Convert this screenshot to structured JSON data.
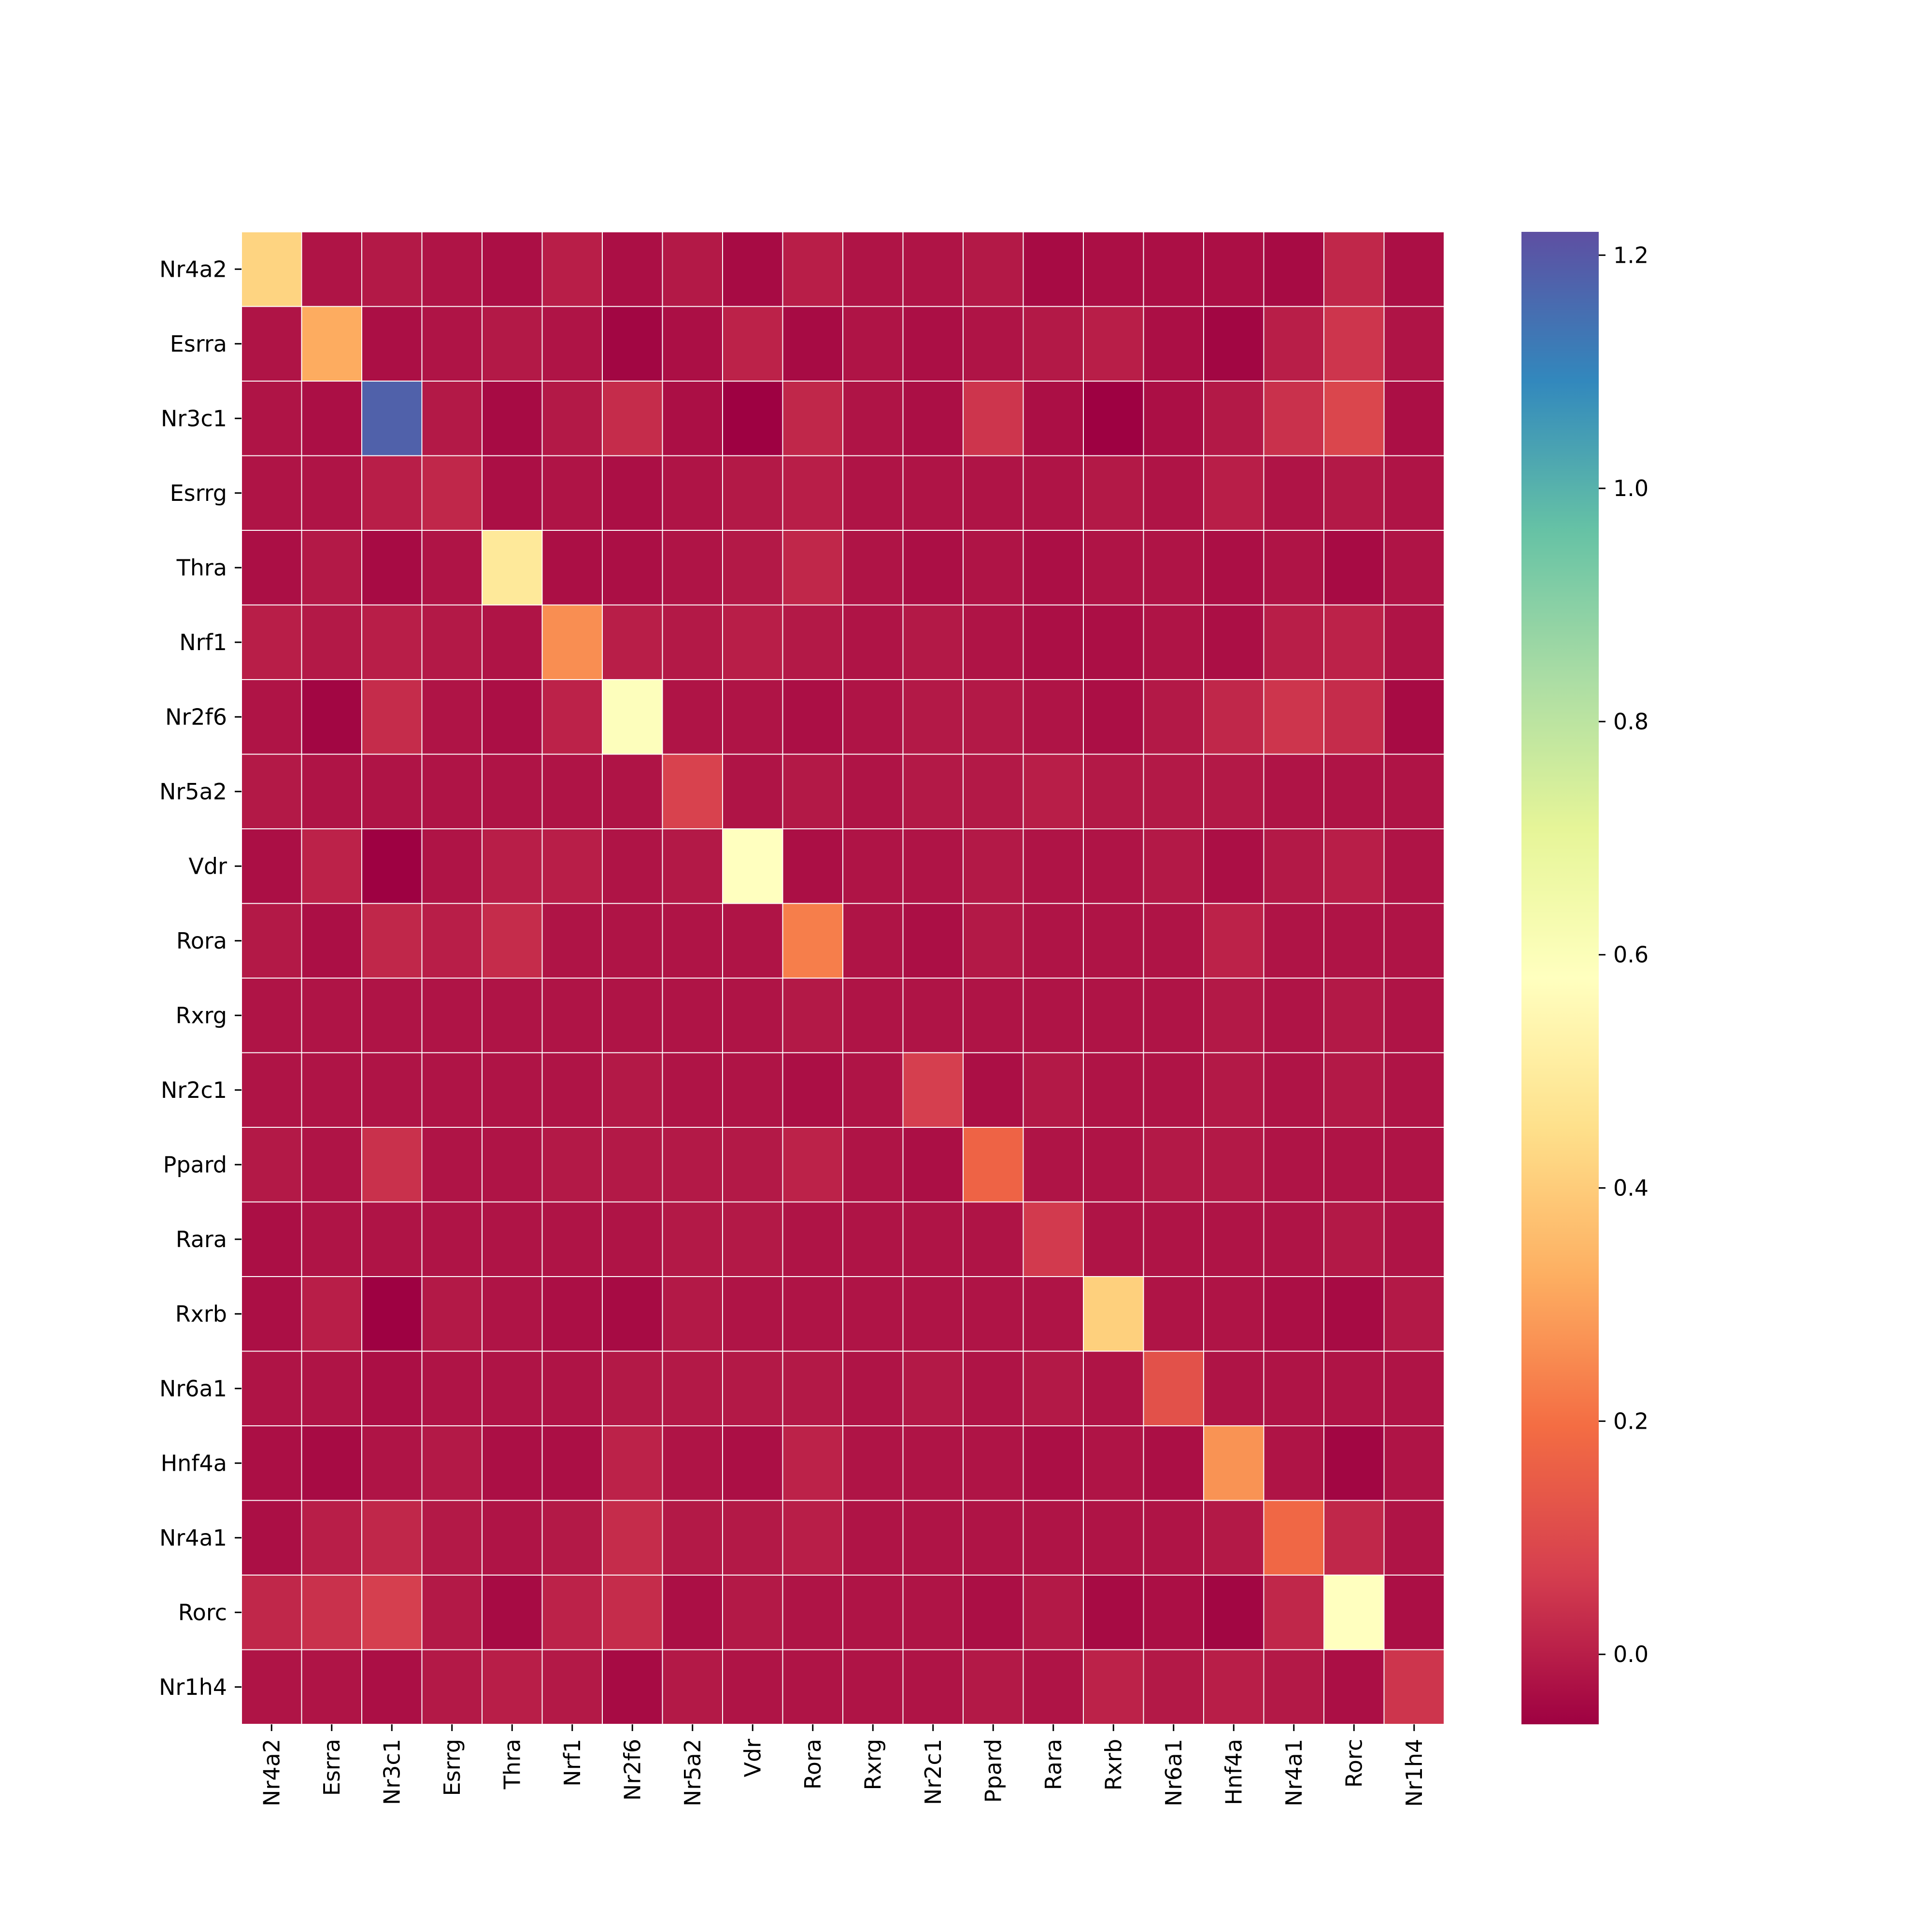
{
  "chart_data": {
    "type": "heatmap",
    "title": "",
    "xlabel": "",
    "ylabel": "",
    "rows": [
      "Nr4a2",
      "Esrra",
      "Nr3c1",
      "Esrrg",
      "Thra",
      "Nrf1",
      "Nr2f6",
      "Nr5a2",
      "Vdr",
      "Rora",
      "Rxrg",
      "Nr2c1",
      "Ppard",
      "Rara",
      "Rxrb",
      "Nr6a1",
      "Hnf4a",
      "Nr4a1",
      "Rorc",
      "Nr1h4"
    ],
    "columns": [
      "Nr4a2",
      "Esrra",
      "Nr3c1",
      "Esrrg",
      "Thra",
      "Nrf1",
      "Nr2f6",
      "Nr5a2",
      "Vdr",
      "Rora",
      "Rxrg",
      "Nr2c1",
      "Ppard",
      "Rara",
      "Rxrb",
      "Nr6a1",
      "Hnf4a",
      "Nr4a1",
      "Rorc",
      "Nr1h4"
    ],
    "values": [
      [
        0.42,
        -0.02,
        -0.01,
        -0.02,
        -0.03,
        0.0,
        -0.03,
        -0.01,
        -0.04,
        0.0,
        -0.02,
        -0.02,
        -0.01,
        -0.04,
        -0.03,
        -0.03,
        -0.03,
        -0.04,
        0.02,
        -0.03
      ],
      [
        -0.02,
        0.32,
        -0.03,
        -0.02,
        -0.01,
        -0.02,
        -0.05,
        -0.03,
        0.01,
        -0.04,
        -0.02,
        -0.03,
        -0.02,
        -0.01,
        0.0,
        -0.03,
        -0.05,
        0.0,
        0.05,
        -0.02
      ],
      [
        -0.02,
        -0.03,
        1.18,
        -0.01,
        -0.04,
        -0.01,
        0.03,
        -0.03,
        -0.06,
        0.02,
        -0.02,
        -0.03,
        0.05,
        -0.03,
        -0.06,
        -0.03,
        -0.01,
        0.04,
        0.09,
        -0.03
      ],
      [
        -0.02,
        -0.02,
        0.0,
        0.02,
        -0.03,
        -0.02,
        -0.03,
        -0.02,
        -0.01,
        0.0,
        -0.02,
        -0.02,
        -0.02,
        -0.02,
        -0.01,
        -0.02,
        0.0,
        -0.02,
        -0.01,
        -0.02
      ],
      [
        -0.03,
        -0.01,
        -0.04,
        -0.02,
        0.49,
        -0.03,
        -0.03,
        -0.02,
        -0.01,
        0.02,
        -0.02,
        -0.03,
        -0.02,
        -0.03,
        -0.02,
        -0.02,
        -0.03,
        -0.02,
        -0.04,
        -0.02
      ],
      [
        0.0,
        -0.01,
        0.0,
        -0.01,
        -0.02,
        0.26,
        0.0,
        -0.01,
        0.0,
        -0.01,
        -0.02,
        -0.01,
        -0.02,
        -0.03,
        -0.03,
        -0.02,
        -0.03,
        0.0,
        0.01,
        -0.02
      ],
      [
        -0.02,
        -0.05,
        0.03,
        -0.02,
        -0.03,
        0.01,
        0.59,
        -0.02,
        -0.02,
        -0.03,
        -0.02,
        -0.01,
        -0.01,
        -0.02,
        -0.03,
        -0.01,
        0.02,
        0.05,
        0.03,
        -0.04
      ],
      [
        -0.01,
        -0.02,
        -0.02,
        -0.02,
        -0.02,
        -0.02,
        -0.02,
        0.08,
        -0.02,
        -0.01,
        -0.02,
        -0.01,
        -0.01,
        0.0,
        -0.01,
        -0.01,
        -0.01,
        -0.02,
        -0.02,
        -0.02
      ],
      [
        -0.03,
        0.01,
        -0.06,
        -0.02,
        0.0,
        0.0,
        -0.02,
        -0.01,
        0.58,
        -0.03,
        -0.02,
        -0.02,
        -0.01,
        -0.02,
        -0.02,
        -0.01,
        -0.03,
        -0.01,
        0.0,
        -0.02
      ],
      [
        -0.01,
        -0.03,
        0.02,
        0.0,
        0.03,
        -0.02,
        -0.02,
        -0.02,
        -0.02,
        0.23,
        -0.02,
        -0.03,
        -0.01,
        -0.02,
        -0.02,
        -0.02,
        0.01,
        -0.02,
        -0.02,
        -0.02
      ],
      [
        -0.02,
        -0.02,
        -0.02,
        -0.02,
        -0.02,
        -0.02,
        -0.02,
        -0.02,
        -0.02,
        -0.01,
        -0.02,
        -0.02,
        -0.02,
        -0.02,
        -0.02,
        -0.02,
        -0.01,
        -0.02,
        -0.01,
        -0.02
      ],
      [
        -0.02,
        -0.02,
        -0.02,
        -0.02,
        -0.02,
        -0.02,
        -0.01,
        -0.02,
        -0.02,
        -0.03,
        -0.02,
        0.07,
        -0.03,
        -0.01,
        -0.02,
        -0.02,
        -0.01,
        -0.02,
        -0.01,
        -0.02
      ],
      [
        -0.01,
        -0.02,
        0.04,
        -0.02,
        -0.02,
        -0.01,
        -0.01,
        -0.01,
        -0.01,
        0.01,
        -0.02,
        -0.03,
        0.17,
        -0.02,
        -0.02,
        -0.01,
        -0.01,
        -0.02,
        -0.02,
        -0.02
      ],
      [
        -0.03,
        -0.02,
        -0.02,
        -0.02,
        -0.02,
        -0.02,
        -0.02,
        -0.01,
        -0.01,
        -0.02,
        -0.02,
        -0.02,
        -0.02,
        0.06,
        -0.02,
        -0.02,
        -0.02,
        -0.02,
        -0.01,
        -0.02
      ],
      [
        -0.03,
        0.0,
        -0.06,
        -0.01,
        -0.02,
        -0.03,
        -0.04,
        -0.01,
        -0.02,
        -0.02,
        -0.02,
        -0.02,
        -0.02,
        -0.02,
        0.41,
        -0.02,
        -0.02,
        -0.03,
        -0.04,
        -0.01
      ],
      [
        -0.02,
        -0.02,
        -0.03,
        -0.02,
        -0.02,
        -0.02,
        -0.01,
        -0.01,
        -0.01,
        -0.01,
        -0.02,
        -0.01,
        -0.02,
        -0.01,
        -0.02,
        0.12,
        -0.02,
        -0.02,
        -0.02,
        -0.02
      ],
      [
        -0.03,
        -0.04,
        -0.02,
        -0.01,
        -0.03,
        -0.03,
        0.01,
        -0.02,
        -0.03,
        0.01,
        -0.02,
        -0.02,
        -0.02,
        -0.03,
        -0.02,
        -0.03,
        0.27,
        -0.02,
        -0.05,
        -0.02
      ],
      [
        -0.03,
        0.0,
        0.02,
        -0.01,
        -0.02,
        -0.01,
        0.03,
        -0.01,
        -0.01,
        0.0,
        -0.02,
        -0.02,
        -0.02,
        -0.02,
        -0.02,
        -0.02,
        -0.01,
        0.18,
        0.02,
        -0.02
      ],
      [
        0.02,
        0.04,
        0.07,
        -0.01,
        -0.04,
        0.01,
        0.03,
        -0.03,
        -0.01,
        -0.02,
        -0.02,
        -0.02,
        -0.03,
        -0.01,
        -0.04,
        -0.03,
        -0.05,
        0.02,
        0.58,
        -0.03
      ],
      [
        -0.02,
        -0.02,
        -0.03,
        -0.01,
        0.0,
        -0.01,
        -0.04,
        -0.01,
        -0.02,
        -0.02,
        -0.02,
        -0.02,
        -0.01,
        -0.02,
        0.01,
        -0.01,
        0.0,
        -0.01,
        -0.03,
        0.05
      ]
    ],
    "vmin": -0.06,
    "vmax": 1.22,
    "colormap": "Spectral",
    "colorbar": {
      "ticks": [
        0.0,
        0.2,
        0.4,
        0.6,
        0.8,
        1.0,
        1.2
      ],
      "tick_labels": [
        "0.0",
        "0.2",
        "0.4",
        "0.6",
        "0.8",
        "1.0",
        "1.2"
      ],
      "placement": "right"
    },
    "grid": true,
    "grid_color": "#ffffff"
  }
}
